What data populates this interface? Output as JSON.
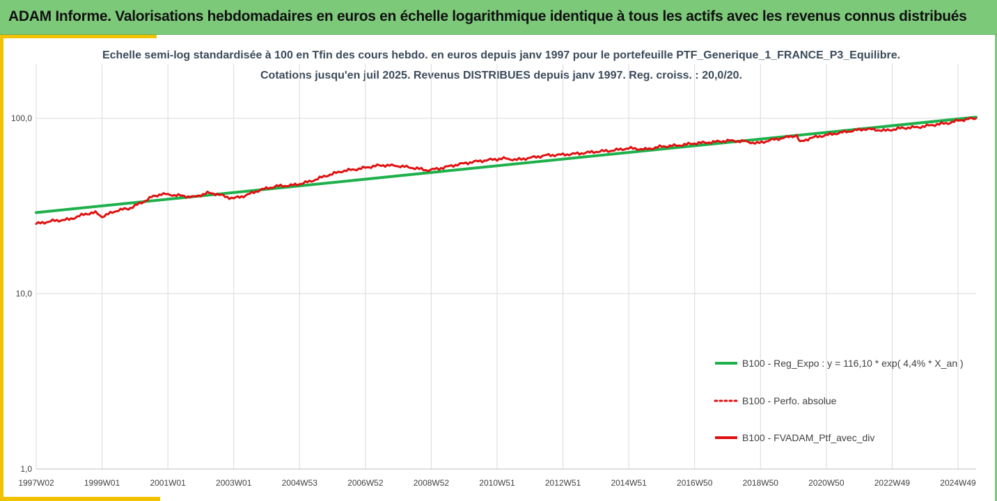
{
  "header": {
    "title": "ADAM Informe. Valorisations hebdomadaires en euros en échelle logarithmique identique à tous les actifs avec les revenus connus distribués"
  },
  "colors": {
    "header_bg": "#7dc97a",
    "accent": "#f2c200",
    "regression": "#1db04b",
    "portfolio": "#e01010"
  },
  "chart_data": {
    "type": "line",
    "title": "Echelle semi-log standardisée  à 100 en Tfin des cours hebdo.  en euros depuis janv 1997 pour le portefeuille PTF_Generique_1_FRANCE_P3_Equilibre.",
    "subtitle": "Cotations  jusqu'en juil 2025. Revenus DISTRIBUES depuis janv 1997. Reg. croiss. : 20,0/20.",
    "y_scale": "log",
    "ylim": [
      1,
      200
    ],
    "y_ticks": [
      1,
      10,
      100
    ],
    "y_tick_labels": [
      "1,0",
      "10,0",
      "100,0"
    ],
    "x_tick_labels": [
      "1997W02",
      "1999W01",
      "2001W01",
      "2003W01",
      "2004W53",
      "2006W52",
      "2008W52",
      "2010W51",
      "2012W51",
      "2014W51",
      "2016W50",
      "2018W50",
      "2020W50",
      "2022W49",
      "2024W49"
    ],
    "x_tick_years": [
      1997.0,
      1999.0,
      2001.0,
      2003.0,
      2005.0,
      2007.0,
      2009.0,
      2011.0,
      2013.0,
      2015.0,
      2017.0,
      2019.0,
      2021.0,
      2023.0,
      2025.0
    ],
    "xlim": [
      1997.0,
      2025.55
    ],
    "grid": "vertical",
    "legend_position": "lower-right",
    "series": [
      {
        "name": "B100 - Reg_Expo : y = 116,10 * exp( 4,4% *  X_an )",
        "style": "solid",
        "x": [
          1997.0,
          2025.55
        ],
        "values": [
          29.0,
          101.5
        ]
      },
      {
        "name": "B100 - Perfo. absolue",
        "style": "dotted",
        "x": [],
        "values": []
      },
      {
        "name": "B100 - FVADAM_Ptf_avec_div",
        "style": "solid",
        "x": [
          1997.0,
          1997.5,
          1998.0,
          1998.5,
          1998.8,
          1999.0,
          1999.5,
          1999.8,
          2000.2,
          2000.5,
          2000.8,
          2001.2,
          2001.5,
          2001.8,
          2002.2,
          2002.5,
          2002.8,
          2003.0,
          2003.3,
          2003.8,
          2004.3,
          2004.8,
          2005.3,
          2005.8,
          2006.3,
          2006.8,
          2007.3,
          2007.6,
          2008.0,
          2008.5,
          2008.9,
          2009.3,
          2009.8,
          2010.3,
          2010.8,
          2011.2,
          2011.6,
          2012.0,
          2012.5,
          2013.0,
          2013.5,
          2014.0,
          2014.5,
          2015.0,
          2015.5,
          2016.0,
          2016.5,
          2017.0,
          2017.5,
          2018.0,
          2018.5,
          2018.9,
          2019.3,
          2019.8,
          2020.1,
          2020.2,
          2020.5,
          2020.8,
          2021.3,
          2021.8,
          2022.2,
          2022.5,
          2022.8,
          2023.3,
          2023.8,
          2024.3,
          2024.7,
          2025.0,
          2025.3,
          2025.55
        ],
        "values": [
          25.0,
          26.0,
          26.5,
          28.5,
          29.0,
          27.5,
          30.0,
          30.5,
          33.0,
          35.5,
          37.0,
          36.5,
          36.0,
          35.5,
          37.5,
          37.0,
          35.5,
          35.0,
          36.0,
          39.0,
          41.0,
          41.5,
          43.5,
          47.0,
          50.0,
          51.5,
          53.5,
          54.0,
          53.5,
          52.0,
          50.5,
          52.0,
          54.5,
          56.5,
          58.0,
          59.0,
          58.0,
          59.5,
          61.5,
          62.0,
          63.0,
          64.5,
          65.5,
          67.5,
          66.5,
          69.0,
          70.0,
          72.0,
          73.0,
          74.5,
          74.0,
          72.0,
          75.0,
          78.0,
          80.0,
          73.0,
          77.0,
          79.0,
          82.0,
          85.0,
          87.0,
          86.0,
          85.0,
          88.0,
          89.0,
          92.0,
          94.0,
          97.0,
          99.0,
          100.0
        ]
      }
    ]
  }
}
